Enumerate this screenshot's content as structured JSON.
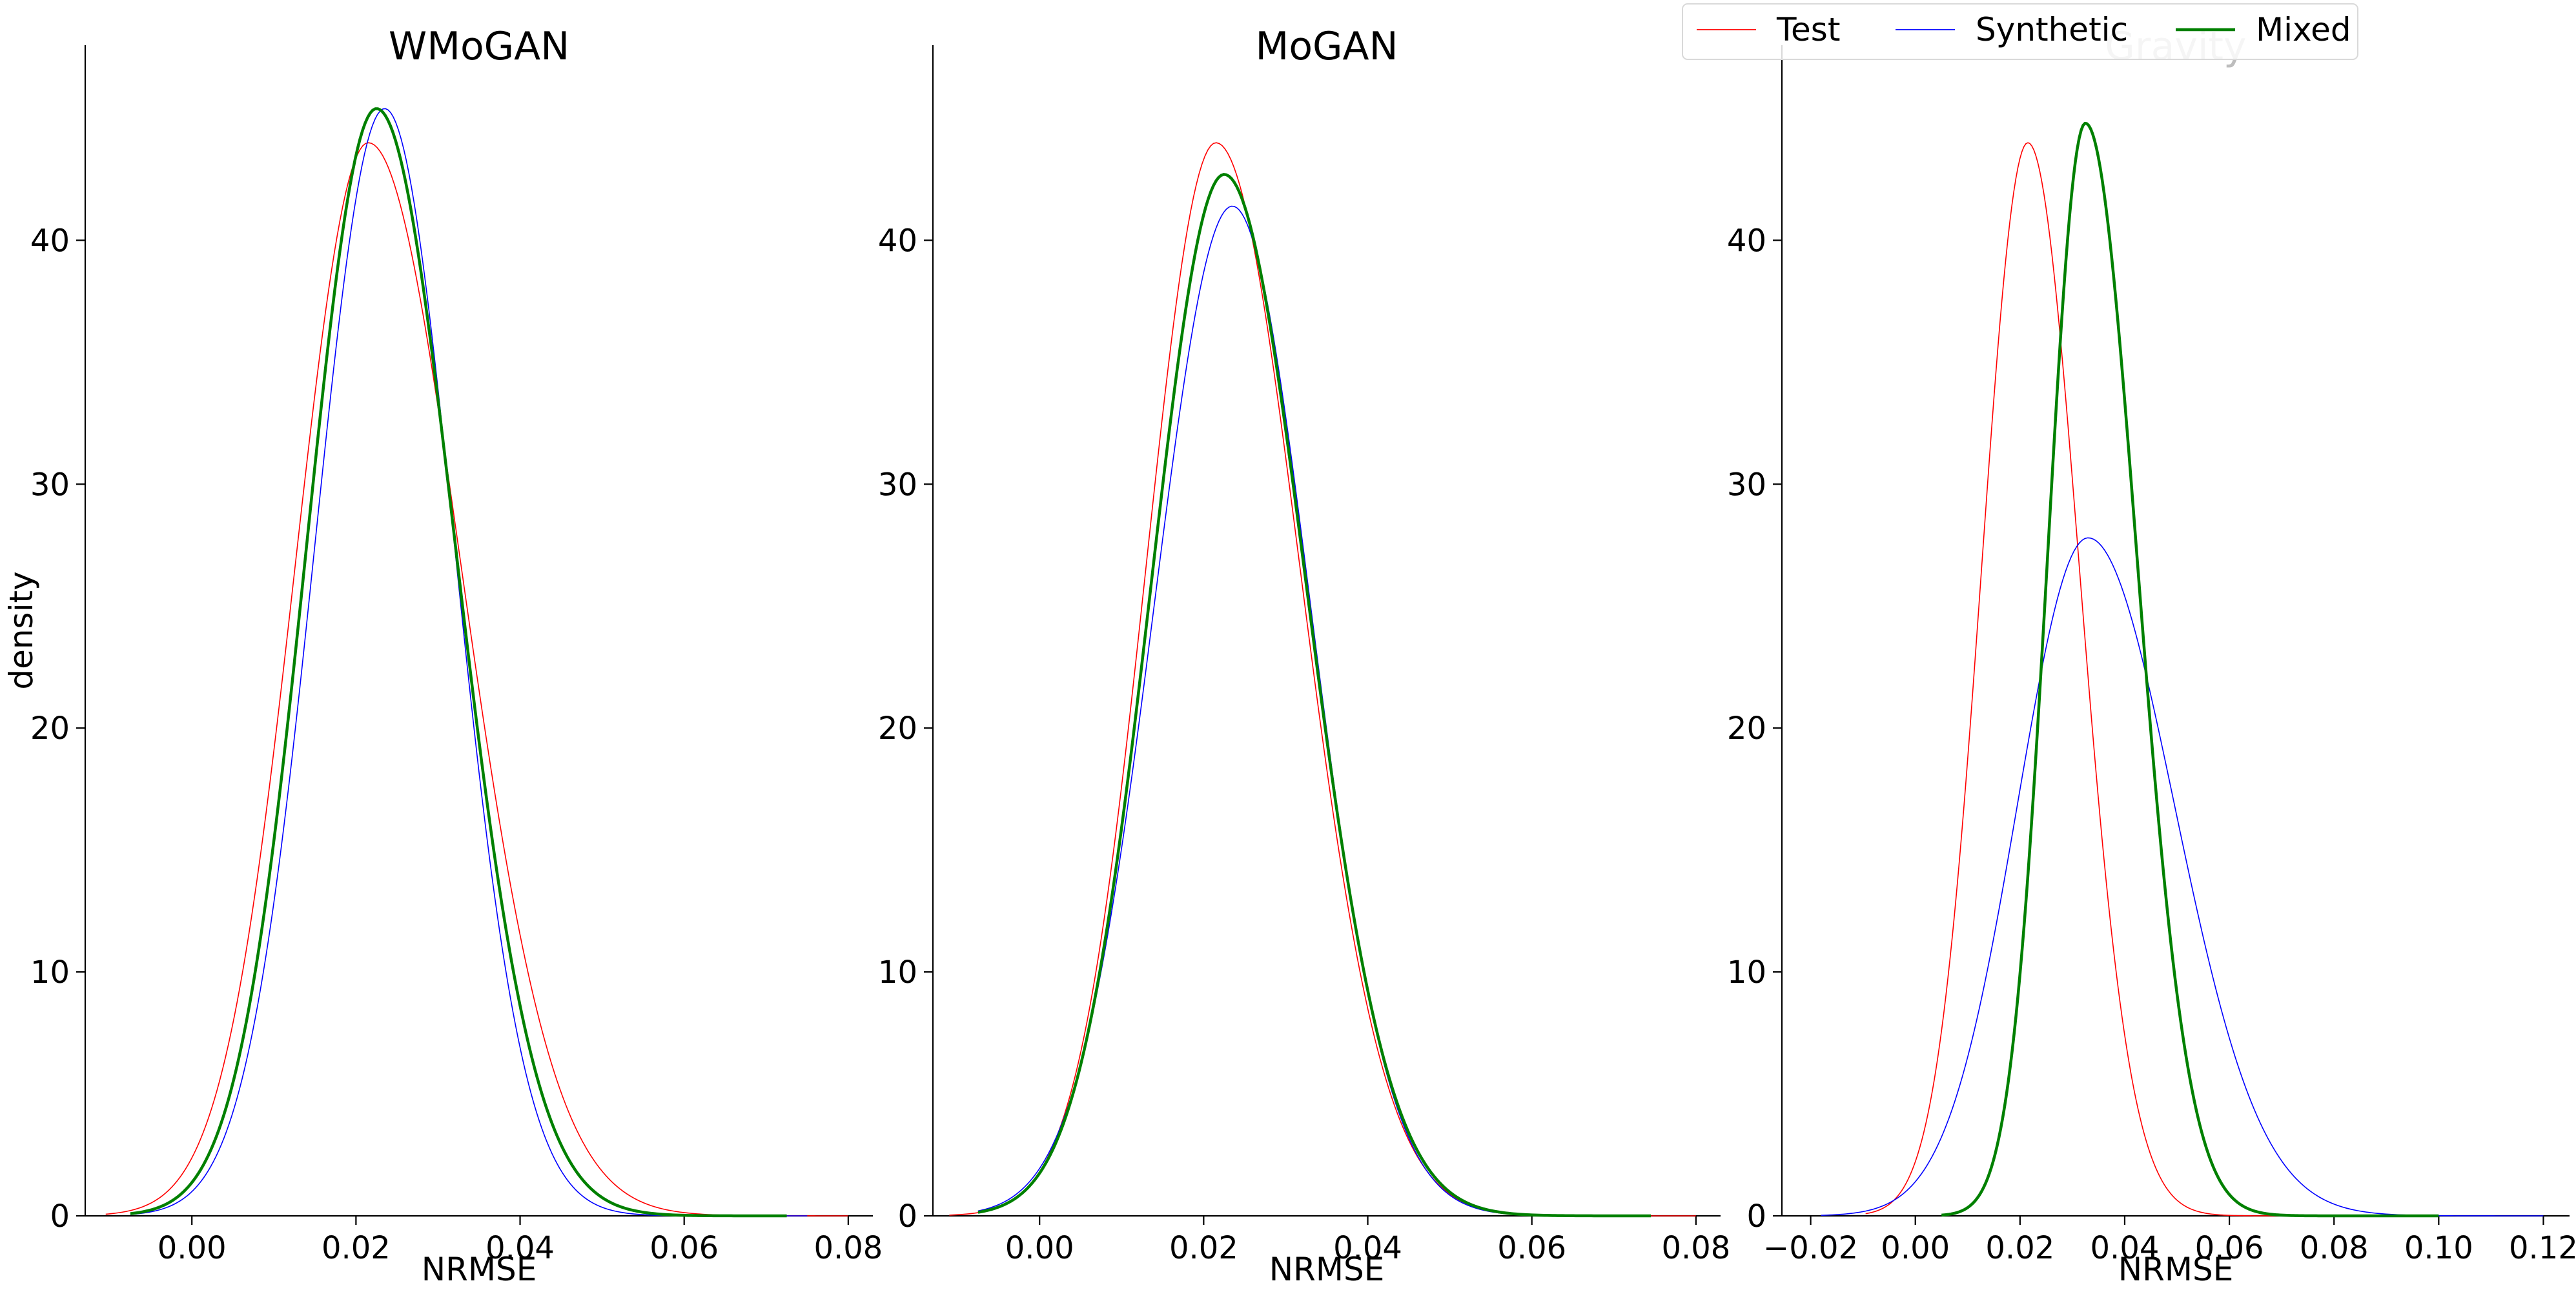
{
  "chart_data": [
    {
      "type": "line",
      "title": "WMoGAN",
      "xlabel": "NRMSE",
      "ylabel": "density",
      "xlim": [
        -0.013,
        0.083
      ],
      "ylim": [
        0,
        48
      ],
      "x_ticks": [
        "0.00",
        "0.02",
        "0.04",
        "0.06",
        "0.08"
      ],
      "y_ticks": [
        "0",
        "10",
        "20",
        "30",
        "40"
      ],
      "grid": false,
      "series": [
        {
          "name": "Test",
          "color": "#ff0000",
          "peak_x": 0.0215,
          "peak_y": 44.0,
          "sigma_left": 0.0089,
          "sigma_right": 0.0113,
          "x_range": [
            -0.0105,
            0.08
          ]
        },
        {
          "name": "Synthetic",
          "color": "#0000ff",
          "peak_x": 0.0235,
          "peak_y": 45.4,
          "sigma_left": 0.0085,
          "sigma_right": 0.0085,
          "x_range": [
            -0.0075,
            0.075
          ]
        },
        {
          "name": "Mixed",
          "color": "#008000",
          "peak_x": 0.0225,
          "peak_y": 45.4,
          "sigma_left": 0.0085,
          "sigma_right": 0.0096,
          "x_range": [
            -0.0075,
            0.0725
          ]
        }
      ]
    },
    {
      "type": "line",
      "title": "MoGAN",
      "xlabel": "NRMSE",
      "ylabel": "",
      "xlim": [
        -0.013,
        0.083
      ],
      "ylim": [
        0,
        48
      ],
      "x_ticks": [
        "0.00",
        "0.02",
        "0.04",
        "0.06",
        "0.08"
      ],
      "y_ticks": [
        "0",
        "10",
        "20",
        "30",
        "40"
      ],
      "grid": false,
      "series": [
        {
          "name": "Test",
          "color": "#ff0000",
          "peak_x": 0.0215,
          "peak_y": 44.0,
          "sigma_left": 0.0085,
          "sigma_right": 0.0102,
          "x_range": [
            -0.011,
            0.08
          ]
        },
        {
          "name": "Synthetic",
          "color": "#0000ff",
          "peak_x": 0.0235,
          "peak_y": 41.4,
          "sigma_left": 0.0095,
          "sigma_right": 0.0095,
          "x_range": [
            -0.0075,
            0.0745
          ]
        },
        {
          "name": "Mixed",
          "color": "#008000",
          "peak_x": 0.0225,
          "peak_y": 42.7,
          "sigma_left": 0.0089,
          "sigma_right": 0.01,
          "x_range": [
            -0.0075,
            0.0745
          ]
        }
      ]
    },
    {
      "type": "line",
      "title": "Gravity",
      "xlabel": "NRMSE",
      "ylabel": "",
      "xlim": [
        -0.0255,
        0.125
      ],
      "ylim": [
        0,
        48
      ],
      "x_ticks": [
        "−0.02",
        "0.00",
        "0.02",
        "0.04",
        "0.06",
        "0.08",
        "0.10",
        "0.12"
      ],
      "y_ticks": [
        "0",
        "10",
        "20",
        "30",
        "40"
      ],
      "grid": false,
      "series": [
        {
          "name": "Test",
          "color": "#ff0000",
          "peak_x": 0.0215,
          "peak_y": 44.0,
          "sigma_left": 0.0088,
          "sigma_right": 0.0098,
          "x_range": [
            -0.0095,
            0.09
          ]
        },
        {
          "name": "Synthetic",
          "color": "#0000ff",
          "peak_x": 0.033,
          "peak_y": 27.8,
          "sigma_left": 0.0135,
          "sigma_right": 0.0165,
          "x_range": [
            -0.018,
            0.12
          ]
        },
        {
          "name": "Mixed",
          "color": "#008000",
          "peak_x": 0.0325,
          "peak_y": 44.8,
          "sigma_left": 0.0072,
          "sigma_right": 0.0098,
          "x_range": [
            0.005,
            0.1
          ]
        }
      ]
    }
  ],
  "legend": {
    "placement": "top-right",
    "entries": [
      {
        "label": "Test",
        "color": "#ff0000"
      },
      {
        "label": "Synthetic",
        "color": "#0000ff"
      },
      {
        "label": "Mixed",
        "color": "#008000"
      }
    ]
  }
}
